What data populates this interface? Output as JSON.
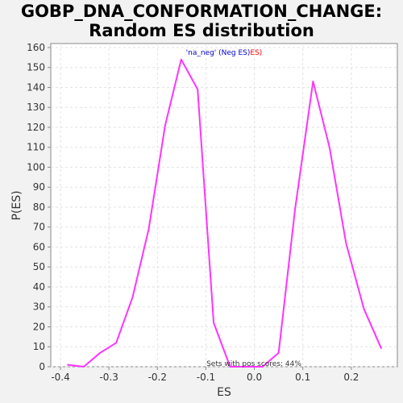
{
  "chart_data": {
    "type": "line",
    "title_line1": "GOBP_DNA_CONFORMATION_CHANGE:",
    "title_line2": "Random ES distribution",
    "xlabel": "ES",
    "ylabel": "P(ES)",
    "xlim": [
      -0.42,
      0.295
    ],
    "ylim": [
      0,
      162
    ],
    "xticks": [
      -0.4,
      -0.3,
      -0.2,
      -0.1,
      0.0,
      0.1,
      0.2
    ],
    "xtick_labels": [
      "-0.4",
      "-0.3",
      "-0.2",
      "-0.1",
      "0.0",
      "0.1",
      "0.2"
    ],
    "yticks": [
      0,
      10,
      20,
      30,
      40,
      50,
      60,
      70,
      80,
      90,
      100,
      110,
      120,
      130,
      140,
      150,
      160
    ],
    "ytick_labels": [
      "0",
      "10",
      "20",
      "30",
      "40",
      "50",
      "60",
      "70",
      "80",
      "90",
      "100",
      "110",
      "120",
      "130",
      "140",
      "150",
      "160"
    ],
    "grid": true,
    "line_color": "#ff33ff",
    "annotation_neg_part1": "'na_neg' (Neg ES)",
    "annotation_neg_part2": "ES)",
    "annotation_neg_color1": "#0000cc",
    "annotation_neg_color2": "#ff0000",
    "annotation_pos": "Sets with pos scores: 44%",
    "series": [
      {
        "x": [
          -0.386,
          -0.352,
          -0.318,
          -0.285,
          -0.251,
          -0.218,
          -0.184,
          -0.151,
          -0.117,
          -0.084,
          -0.05,
          -0.017,
          0.017,
          0.05,
          0.084,
          0.121,
          0.155,
          0.189,
          0.226,
          0.262
        ],
        "y": [
          1,
          0,
          7,
          12,
          35,
          69,
          121,
          154,
          139,
          22,
          0,
          0,
          0,
          7,
          79,
          143,
          110,
          62,
          29,
          9
        ]
      }
    ]
  }
}
